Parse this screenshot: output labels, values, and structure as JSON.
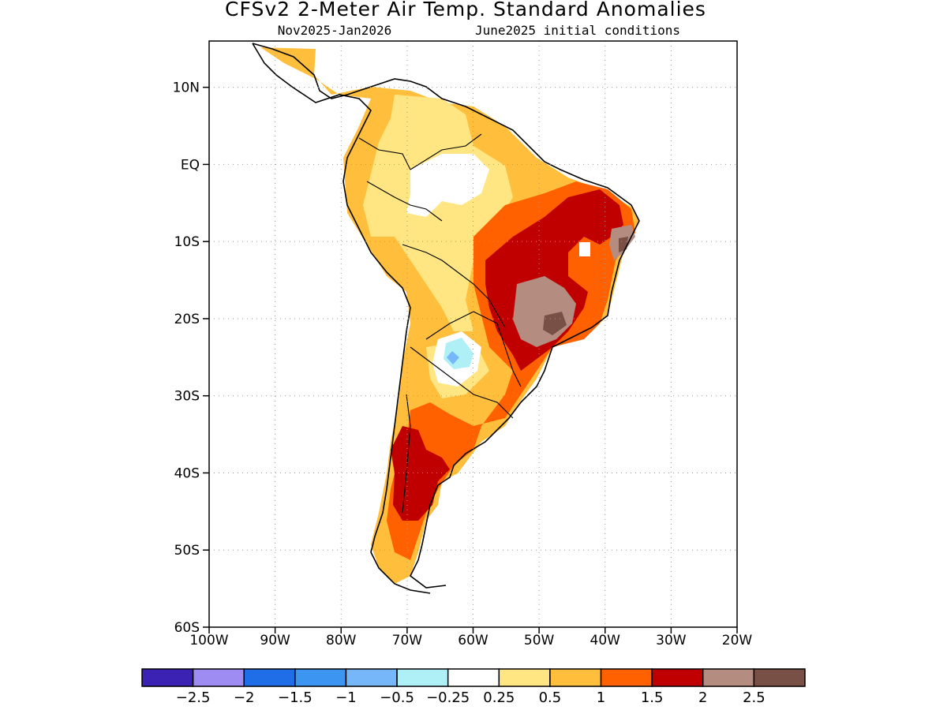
{
  "title": "CFSv2 2-Meter Air Temp. Standard Anomalies",
  "subtitle_left": "Nov2025-Jan2026",
  "subtitle_right": "June2025 initial conditions",
  "map": {
    "region": "South America",
    "lon_range": [
      -100,
      -20
    ],
    "lat_range": [
      -60,
      16
    ],
    "lat_ticks": [
      "10N",
      "EQ",
      "10S",
      "20S",
      "30S",
      "40S",
      "50S",
      "60S"
    ],
    "lon_ticks": [
      "100W",
      "90W",
      "80W",
      "70W",
      "60W",
      "50W",
      "40W",
      "30W",
      "20W"
    ],
    "grid": "dotted"
  },
  "legend": {
    "colors": [
      "#3b22b4",
      "#9e8cf2",
      "#1f6ee8",
      "#3d95f2",
      "#76b7fa",
      "#aff0f7",
      "#ffffff",
      "#ffe682",
      "#ffbe3c",
      "#ff6000",
      "#c00000",
      "#b48c80",
      "#785046"
    ],
    "labels": [
      "-2.5",
      "-2",
      "-1.5",
      "-1",
      "-0.5",
      "-0.25",
      "0.25",
      "0.5",
      "1",
      "1.5",
      "2",
      "2.5"
    ]
  }
}
